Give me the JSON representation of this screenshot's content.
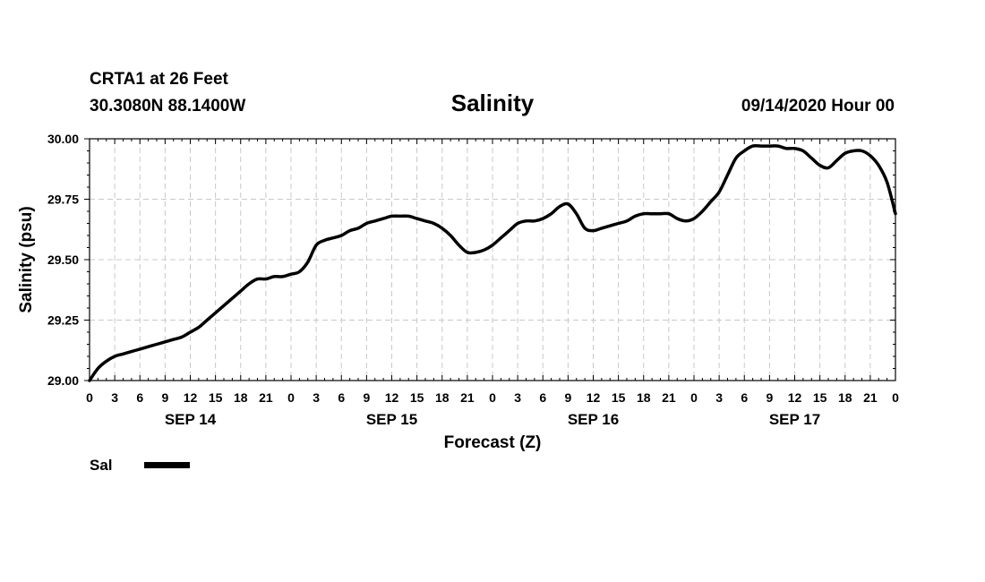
{
  "header": {
    "station_line": "CRTA1 at 26 Feet",
    "location_line": "30.3080N 88.1400W",
    "datetime_line": "09/14/2020 Hour 00"
  },
  "chart_data": {
    "type": "line",
    "title": "Salinity",
    "xlabel": "Forecast (Z)",
    "ylabel": "Salinity (psu)",
    "ylim": [
      29.0,
      30.0
    ],
    "yticks": [
      "29.00",
      "29.25",
      "29.50",
      "29.75",
      "30.00"
    ],
    "xlim_hours": [
      0,
      96
    ],
    "xtick_hours": [
      0,
      3,
      6,
      9,
      12,
      15,
      18,
      21,
      24,
      27,
      30,
      33,
      36,
      39,
      42,
      45,
      48,
      51,
      54,
      57,
      60,
      63,
      66,
      69,
      72,
      75,
      78,
      81,
      84,
      87,
      90,
      93,
      96
    ],
    "xtick_labels": [
      "0",
      "3",
      "6",
      "9",
      "12",
      "15",
      "18",
      "21",
      "0",
      "3",
      "6",
      "9",
      "12",
      "15",
      "18",
      "21",
      "0",
      "3",
      "6",
      "9",
      "12",
      "15",
      "18",
      "21",
      "0",
      "3",
      "6",
      "9",
      "12",
      "15",
      "18",
      "21",
      "0"
    ],
    "day_labels": [
      {
        "hour": 12,
        "label": "SEP 14"
      },
      {
        "hour": 36,
        "label": "SEP 15"
      },
      {
        "hour": 60,
        "label": "SEP 16"
      },
      {
        "hour": 84,
        "label": "SEP 17"
      }
    ],
    "grid": true,
    "legend_position": "bottom-left",
    "series": [
      {
        "name": "Sal",
        "color": "#000000",
        "x_hours": [
          0,
          1,
          2,
          3,
          4,
          5,
          6,
          7,
          8,
          9,
          10,
          11,
          12,
          13,
          14,
          15,
          16,
          17,
          18,
          19,
          20,
          21,
          22,
          23,
          24,
          25,
          26,
          27,
          28,
          29,
          30,
          31,
          32,
          33,
          34,
          35,
          36,
          37,
          38,
          39,
          40,
          41,
          42,
          43,
          44,
          45,
          46,
          47,
          48,
          49,
          50,
          51,
          52,
          53,
          54,
          55,
          56,
          57,
          58,
          59,
          60,
          61,
          62,
          63,
          64,
          65,
          66,
          67,
          68,
          69,
          70,
          71,
          72,
          73,
          74,
          75,
          76,
          77,
          78,
          79,
          80,
          81,
          82,
          83,
          84,
          85,
          86,
          87,
          88,
          89,
          90,
          91,
          92,
          93,
          94,
          95,
          96
        ],
        "values": [
          29.0,
          29.05,
          29.08,
          29.1,
          29.11,
          29.12,
          29.13,
          29.14,
          29.15,
          29.16,
          29.17,
          29.18,
          29.2,
          29.22,
          29.25,
          29.28,
          29.31,
          29.34,
          29.37,
          29.4,
          29.42,
          29.42,
          29.43,
          29.43,
          29.44,
          29.45,
          29.49,
          29.56,
          29.58,
          29.59,
          29.6,
          29.62,
          29.63,
          29.65,
          29.66,
          29.67,
          29.68,
          29.68,
          29.68,
          29.67,
          29.66,
          29.65,
          29.63,
          29.6,
          29.56,
          29.53,
          29.53,
          29.54,
          29.56,
          29.59,
          29.62,
          29.65,
          29.66,
          29.66,
          29.67,
          29.69,
          29.72,
          29.73,
          29.69,
          29.63,
          29.62,
          29.63,
          29.64,
          29.65,
          29.66,
          29.68,
          29.69,
          29.69,
          29.69,
          29.69,
          29.67,
          29.66,
          29.67,
          29.7,
          29.74,
          29.78,
          29.85,
          29.92,
          29.95,
          29.97,
          29.97,
          29.97,
          29.97,
          29.96,
          29.96,
          29.95,
          29.92,
          29.89,
          29.88,
          29.91,
          29.94,
          29.95,
          29.95,
          29.93,
          29.89,
          29.82,
          29.69
        ]
      }
    ]
  }
}
